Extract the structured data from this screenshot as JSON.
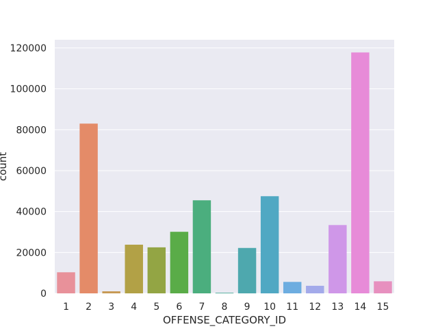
{
  "chart_data": {
    "type": "bar",
    "xlabel": "OFFENSE_CATEGORY_ID",
    "ylabel": "count",
    "categories": [
      "1",
      "2",
      "3",
      "4",
      "5",
      "6",
      "7",
      "8",
      "9",
      "10",
      "11",
      "12",
      "13",
      "14",
      "15"
    ],
    "values": [
      10300,
      83000,
      1000,
      23800,
      22500,
      30100,
      45500,
      300,
      22200,
      47500,
      5600,
      3700,
      33400,
      117800,
      5900
    ],
    "ylim": [
      0,
      124000
    ],
    "yticks": [
      0,
      20000,
      40000,
      60000,
      80000,
      100000,
      120000
    ],
    "ytick_labels": [
      "0",
      "20000",
      "40000",
      "60000",
      "80000",
      "100000",
      "120000"
    ],
    "grid": true,
    "background_color": "#eaeaf2",
    "grid_color": "#ffffff",
    "colors": [
      "#e8919a",
      "#e48b68",
      "#c79a55",
      "#b2a146",
      "#93a544",
      "#5aac48",
      "#4bae7e",
      "#4dab99",
      "#4ea8ae",
      "#50a8c3",
      "#6dade0",
      "#a3aaea",
      "#cf97e8",
      "#e78bd8",
      "#e790bf"
    ]
  }
}
